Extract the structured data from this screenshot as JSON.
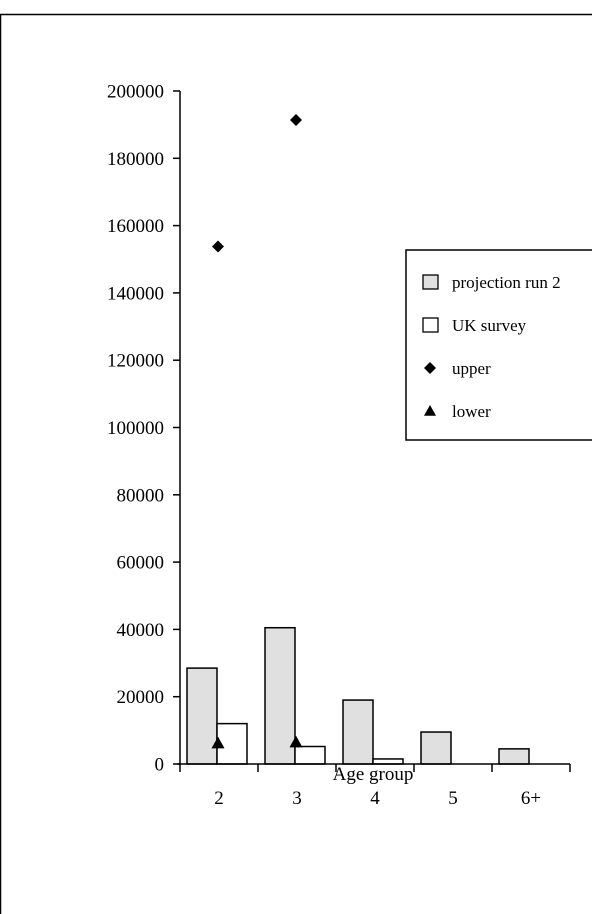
{
  "chart_data": {
    "type": "bar",
    "title": "",
    "xlabel": "Age group",
    "ylabel": "",
    "categories": [
      "2",
      "3",
      "4",
      "5",
      "6+"
    ],
    "ylim": [
      0,
      200000
    ],
    "yticks": [
      0,
      20000,
      40000,
      60000,
      80000,
      100000,
      120000,
      140000,
      160000,
      180000,
      200000
    ],
    "grid": false,
    "legend_placement": "right",
    "series": [
      {
        "name": "projection run 2",
        "kind": "bar",
        "fill": "#e0e0e0",
        "values": [
          28500,
          40500,
          19000,
          9500,
          4500
        ]
      },
      {
        "name": "UK survey",
        "kind": "bar",
        "fill": "#ffffff",
        "values": [
          12000,
          5200,
          1500,
          null,
          null
        ]
      },
      {
        "name": "upper",
        "kind": "marker",
        "marker": "diamond",
        "values": [
          153800,
          191400,
          null,
          null,
          null
        ]
      },
      {
        "name": "lower",
        "kind": "marker",
        "marker": "triangle",
        "values": [
          6200,
          6500,
          null,
          null,
          null
        ]
      }
    ]
  }
}
